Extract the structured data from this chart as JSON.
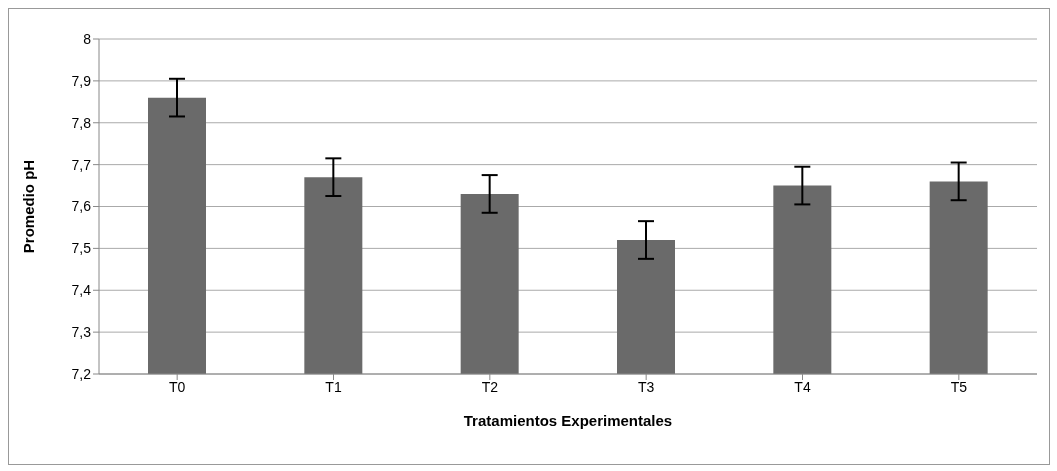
{
  "chart_data": {
    "type": "bar",
    "xlabel": "Tratamientos Experimentales",
    "ylabel": "Promedio pH",
    "categories": [
      "T0",
      "T1",
      "T2",
      "T3",
      "T4",
      "T5"
    ],
    "values": [
      7.86,
      7.67,
      7.63,
      7.52,
      7.65,
      7.66
    ],
    "errors": [
      0.045,
      0.045,
      0.045,
      0.045,
      0.045,
      0.045
    ],
    "color": "#6a6a6a",
    "ylim": [
      7.2,
      8
    ],
    "yticks": [
      {
        "value": 7.2,
        "label": "7,2"
      },
      {
        "value": 7.3,
        "label": "7,3"
      },
      {
        "value": 7.4,
        "label": "7,4"
      },
      {
        "value": 7.5,
        "label": "7,5"
      },
      {
        "value": 7.6,
        "label": "7,6"
      },
      {
        "value": 7.7,
        "label": "7,7"
      },
      {
        "value": 7.8,
        "label": "7,8"
      },
      {
        "value": 7.9,
        "label": "7,9"
      },
      8
    ],
    "grid": "y",
    "legend": false
  }
}
